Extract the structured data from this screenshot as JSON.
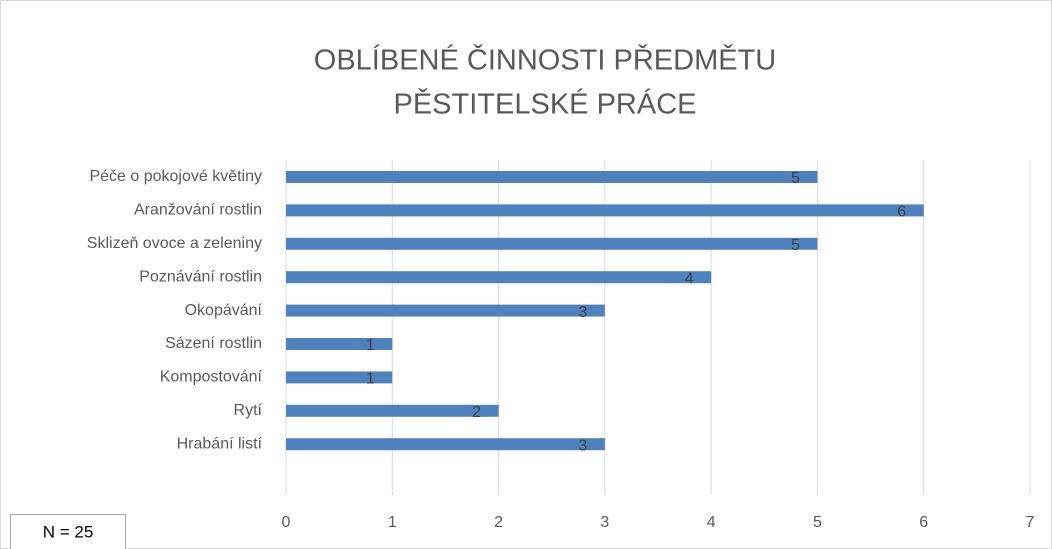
{
  "chart_data": {
    "type": "bar",
    "orientation": "horizontal",
    "title": [
      "OBLÍBENÉ ČINNOSTI PŘEDMĚTU",
      "PĚSTITELSKÉ PRÁCE"
    ],
    "annotation": "N = 25",
    "categories": [
      "Péče o pokojové květiny",
      "Aranžování rostlin",
      "Sklizeň ovoce a zeleniny",
      "Poznávání rostlin",
      "Okopávání",
      "Sázení rostlin",
      "Kompostování",
      "Rytí",
      "Hrabání listí"
    ],
    "values": [
      5,
      6,
      5,
      4,
      3,
      1,
      1,
      2,
      3
    ],
    "color": "#4f81bd",
    "xlim": [
      0,
      7
    ],
    "xticks": [
      0,
      1,
      2,
      3,
      4,
      5,
      6,
      7
    ],
    "grid": true
  }
}
